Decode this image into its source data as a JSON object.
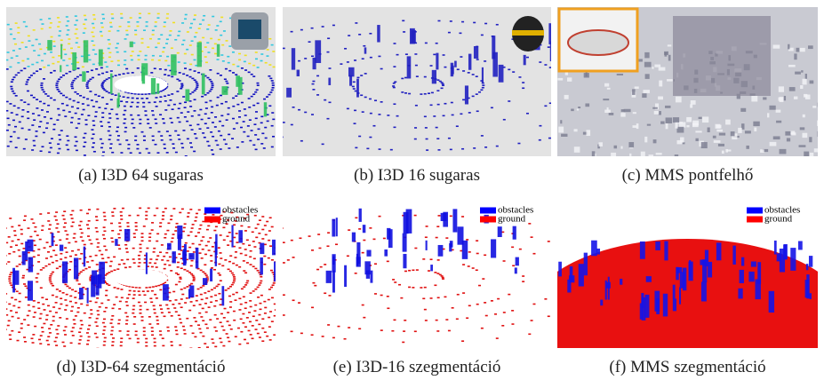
{
  "panels": [
    {
      "caption": "(a) I3D 64 sugaras"
    },
    {
      "caption": "(b) I3D 16 sugaras"
    },
    {
      "caption": "(c) MMS pontfelhő"
    },
    {
      "caption": "(d) I3D-64 szegmentáció",
      "legend": [
        "obstacles",
        "ground"
      ]
    },
    {
      "caption": "(e) I3D-16 szegmentáció",
      "legend": [
        "obstacles",
        "ground"
      ]
    },
    {
      "caption": "(f) MMS szegmentáció",
      "legend": [
        "obstacles",
        "ground"
      ]
    }
  ]
}
